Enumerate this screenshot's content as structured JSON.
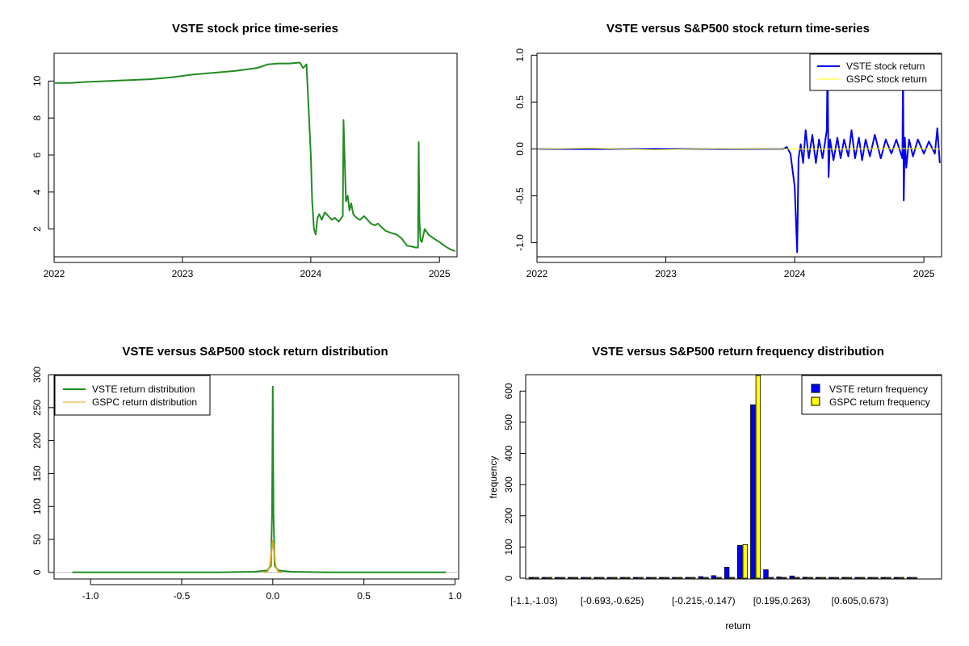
{
  "chart_data": [
    {
      "type": "line",
      "title": "VSTE stock price time-series",
      "xlabel": "",
      "ylabel": "",
      "xlim": [
        "2022-01-01",
        "2025-02-20"
      ],
      "ylim": [
        0.5,
        11.5
      ],
      "x_ticks": [
        "2022",
        "2023",
        "2024",
        "2025"
      ],
      "y_ticks": [
        "2",
        "4",
        "6",
        "8",
        "10"
      ],
      "line_color": "#228B22",
      "series": [
        {
          "x": [
            "2022-01-03",
            "2022-02-15",
            "2022-04-01",
            "2022-06-01",
            "2022-08-01",
            "2022-10-01",
            "2022-12-01",
            "2023-02-01",
            "2023-04-01",
            "2023-06-01",
            "2023-08-01",
            "2023-09-01",
            "2023-10-01",
            "2023-11-01",
            "2023-12-01",
            "2023-12-10",
            "2023-12-20",
            "2024-01-01",
            "2024-01-05",
            "2024-01-10",
            "2024-01-15",
            "2024-01-20",
            "2024-01-25",
            "2024-02-01",
            "2024-02-10",
            "2024-02-20",
            "2024-03-01",
            "2024-03-10",
            "2024-03-20",
            "2024-04-01",
            "2024-04-03",
            "2024-04-06",
            "2024-04-10",
            "2024-04-15",
            "2024-04-20",
            "2024-04-25",
            "2024-05-01",
            "2024-05-10",
            "2024-05-20",
            "2024-06-01",
            "2024-06-10",
            "2024-06-20",
            "2024-07-01",
            "2024-07-10",
            "2024-07-20",
            "2024-08-01",
            "2024-08-15",
            "2024-09-01",
            "2024-09-15",
            "2024-10-01",
            "2024-10-15",
            "2024-10-25",
            "2024-11-01",
            "2024-11-03",
            "2024-11-05",
            "2024-11-08",
            "2024-11-12",
            "2024-11-20",
            "2024-12-01",
            "2024-12-15",
            "2025-01-01",
            "2025-01-15",
            "2025-02-01",
            "2025-02-15"
          ],
          "y": [
            9.9,
            9.9,
            9.95,
            10.0,
            10.05,
            10.1,
            10.2,
            10.35,
            10.45,
            10.55,
            10.7,
            10.9,
            10.95,
            10.95,
            11.0,
            10.7,
            10.9,
            6.0,
            3.5,
            2.0,
            1.7,
            2.6,
            2.8,
            2.5,
            2.9,
            2.7,
            2.5,
            2.6,
            2.4,
            2.7,
            7.9,
            6.0,
            3.5,
            3.8,
            3.0,
            3.4,
            2.8,
            2.6,
            2.5,
            2.7,
            2.5,
            2.3,
            2.2,
            2.3,
            2.1,
            1.9,
            1.8,
            1.7,
            1.5,
            1.1,
            1.05,
            1.0,
            1.0,
            6.7,
            2.5,
            1.4,
            1.3,
            2.0,
            1.7,
            1.5,
            1.3,
            1.1,
            0.9,
            0.8
          ]
        }
      ]
    },
    {
      "type": "line",
      "title": "VSTE versus S&P500 stock return time-series",
      "xlabel": "",
      "ylabel": "",
      "xlim": [
        "2022-01-01",
        "2025-02-20"
      ],
      "ylim": [
        -1.15,
        1.02
      ],
      "x_ticks": [
        "2022",
        "2023",
        "2024",
        "2025"
      ],
      "y_ticks": [
        "-1.0",
        "-0.5",
        "0.0",
        "0.5",
        "1.0"
      ],
      "legend": "top-right",
      "series": [
        {
          "name": "VSTE stock return",
          "color": "#0000EE",
          "x": [
            "2022-01-03",
            "2023-11-30",
            "2023-12-10",
            "2023-12-20",
            "2024-01-01",
            "2024-01-08",
            "2024-01-12",
            "2024-01-18",
            "2024-01-25",
            "2024-02-01",
            "2024-02-10",
            "2024-02-20",
            "2024-03-01",
            "2024-03-10",
            "2024-03-20",
            "2024-04-01",
            "2024-04-03",
            "2024-04-06",
            "2024-04-10",
            "2024-04-20",
            "2024-05-01",
            "2024-05-10",
            "2024-05-20",
            "2024-06-01",
            "2024-06-10",
            "2024-06-20",
            "2024-07-01",
            "2024-07-10",
            "2024-07-20",
            "2024-08-01",
            "2024-08-15",
            "2024-09-01",
            "2024-09-15",
            "2024-10-01",
            "2024-10-15",
            "2024-11-01",
            "2024-11-03",
            "2024-11-05",
            "2024-11-08",
            "2024-11-12",
            "2024-11-20",
            "2024-12-01",
            "2024-12-15",
            "2025-01-01",
            "2025-01-15",
            "2025-02-01",
            "2025-02-08",
            "2025-02-15"
          ],
          "y": [
            0.0,
            0.0,
            0.02,
            -0.05,
            -0.4,
            -1.1,
            -0.1,
            0.05,
            -0.15,
            0.2,
            -0.1,
            0.15,
            -0.15,
            0.1,
            -0.1,
            0.2,
            0.95,
            -0.3,
            0.1,
            -0.12,
            0.12,
            -0.1,
            0.1,
            -0.08,
            0.2,
            -0.1,
            0.12,
            -0.12,
            0.1,
            -0.08,
            0.15,
            -0.1,
            0.1,
            -0.05,
            0.1,
            -0.1,
            0.9,
            -0.55,
            0.12,
            -0.2,
            0.1,
            -0.08,
            0.1,
            -0.05,
            0.08,
            -0.05,
            0.22,
            -0.15
          ]
        },
        {
          "name": "GSPC stock return",
          "color": "#FFFF00",
          "x": [
            "2022-01-03",
            "2022-06-01",
            "2022-12-01",
            "2023-06-01",
            "2023-12-01",
            "2024-06-01",
            "2024-12-01",
            "2025-02-15"
          ],
          "y": [
            0.0,
            0.01,
            -0.01,
            0.005,
            0.0,
            0.0,
            0.005,
            0.0
          ]
        }
      ]
    },
    {
      "type": "line",
      "title": "VSTE versus S&P500 stock return distribution",
      "xlabel": "",
      "ylabel": "",
      "xlim": [
        -1.2,
        1.02
      ],
      "ylim": [
        -10,
        300
      ],
      "x_ticks": [
        "-1.0",
        "-0.5",
        "0.0",
        "0.5",
        "1.0"
      ],
      "y_ticks": [
        "0",
        "50",
        "100",
        "150",
        "200",
        "250",
        "300"
      ],
      "legend": "top-left",
      "series": [
        {
          "name": "VSTE return distribution",
          "color": "#228B22",
          "x": [
            -1.1,
            -0.6,
            -0.3,
            -0.1,
            -0.03,
            -0.01,
            -0.004,
            0.0,
            0.004,
            0.01,
            0.03,
            0.1,
            0.3,
            0.6,
            0.95
          ],
          "y": [
            0,
            0,
            0,
            1,
            3,
            10,
            90,
            282,
            90,
            10,
            3,
            1,
            0,
            0,
            0
          ]
        },
        {
          "name": "GSPC return distribution",
          "color": "#DAA520",
          "x": [
            -0.05,
            -0.03,
            -0.015,
            -0.008,
            0.0,
            0.008,
            0.015,
            0.03,
            0.05
          ],
          "y": [
            0,
            1,
            10,
            30,
            48,
            30,
            10,
            1,
            0
          ]
        }
      ]
    },
    {
      "type": "bar",
      "title": "VSTE versus S&P500 return frequency distribution",
      "xlabel": "return",
      "ylabel": "frequency",
      "ylim": [
        0,
        650
      ],
      "x_ticks": [
        "[-1.1,-1.03)",
        "[-0.693,-0.625)",
        "[-0.215,-0.147)",
        "[0.195,0.263)",
        "[0.605,0.673)"
      ],
      "y_ticks": [
        "0",
        "100",
        "200",
        "300",
        "400",
        "500",
        "600"
      ],
      "legend": "top-right",
      "bins": 30,
      "series": [
        {
          "name": "VSTE return frequency",
          "color": "#0000FF",
          "values": [
            2,
            1,
            0,
            0,
            0,
            0,
            0,
            0,
            0,
            1,
            0,
            0,
            0,
            5,
            8,
            35,
            105,
            556,
            27,
            4,
            7,
            3,
            1,
            0,
            1,
            2,
            0,
            0,
            0,
            1
          ]
        },
        {
          "name": "GSPC return frequency",
          "color": "#FFFF00",
          "values": [
            0,
            0,
            0,
            0,
            0,
            0,
            0,
            0,
            0,
            0,
            0,
            0,
            0,
            0,
            0,
            0,
            108,
            650,
            0,
            0,
            0,
            0,
            0,
            0,
            0,
            0,
            0,
            0,
            0,
            0
          ]
        }
      ]
    }
  ]
}
